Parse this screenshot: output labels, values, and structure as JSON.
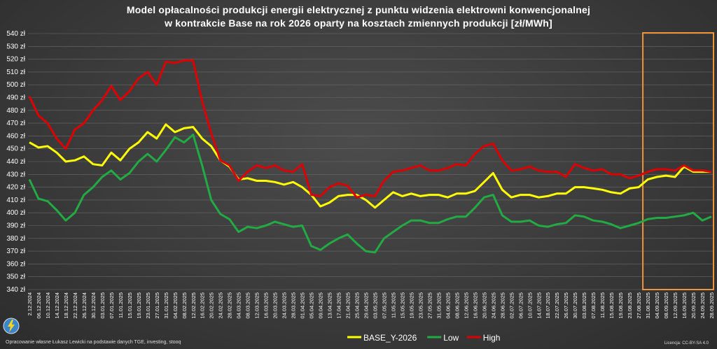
{
  "chart_data": {
    "type": "line",
    "title": "Model opłacalności produkcji energii elektrycznej z punktu widzenia elektrowni konwencjonalnej",
    "subtitle": "w kontrakcie Base na rok 2026 oparty na kosztach zmiennych produkcji [zł/MWh]",
    "ylim": [
      340,
      540
    ],
    "yticks": [
      "340 zł",
      "350 zł",
      "360 zł",
      "370 zł",
      "380 zł",
      "390 zł",
      "400 zł",
      "410 zł",
      "420 zł",
      "430 zł",
      "440 zł",
      "450 zł",
      "460 zł",
      "470 zł",
      "480 zł",
      "490 zł",
      "500 zł",
      "510 zł",
      "520 zł",
      "530 zł",
      "540 zł"
    ],
    "x_dates": [
      "2.12.2024",
      "06.12.2024",
      "10.12.2024",
      "14.12.2024",
      "18.12.2024",
      "22.12.2024",
      "26.12.2024",
      "30.12.2024",
      "03.01.2025",
      "07.01.2025",
      "11.01.2025",
      "15.01.2025",
      "19.01.2025",
      "23.01.2025",
      "27.01.2025",
      "31.01.2025",
      "04.02.2025",
      "08.02.2025",
      "12.02.2025",
      "16.02.2025",
      "20.02.2025",
      "24.02.2025",
      "28.02.2025",
      "04.03.2025",
      "08.03.2025",
      "12.03.2025",
      "16.03.2025",
      "20.03.2025",
      "24.03.2025",
      "28.03.2025",
      "01.04.2025",
      "05.04.2025",
      "09.04.2025",
      "13.04.2025",
      "17.04.2025",
      "21.04.2025",
      "25.04.2025",
      "29.04.2025",
      "03.05.2025",
      "07.05.2025",
      "11.05.2025",
      "15.05.2025",
      "19.05.2025",
      "23.05.2025",
      "27.05.2025",
      "31.05.2025",
      "04.06.2025",
      "08.06.2025",
      "12.06.2025",
      "16.06.2025",
      "20.06.2025",
      "24.06.2025",
      "28.06.2025",
      "02.07.2025",
      "06.07.2025",
      "10.07.2025",
      "14.07.2025",
      "18.07.2025",
      "22.07.2025",
      "26.07.2025",
      "30.07.2025",
      "03.08.2025",
      "07.08.2025",
      "11.08.2025",
      "15.08.2025",
      "19.08.2025",
      "23.08.2025",
      "27.08.2025",
      "31.08.2025",
      "04.09.2025",
      "08.09.2025",
      "12.09.2025",
      "16.09.2025",
      "20.09.2025",
      "24.09.2025",
      "28.09.2025"
    ],
    "series": [
      {
        "name": "BASE_Y-2026",
        "color": "#ffff00",
        "values": [
          455,
          451,
          452,
          447,
          440,
          441,
          444,
          438,
          437,
          447,
          441,
          450,
          455,
          463,
          458,
          469,
          463,
          466,
          467,
          458,
          452,
          441,
          436,
          426,
          427,
          425,
          425,
          424,
          422,
          424,
          420,
          414,
          405,
          408,
          413,
          414,
          414,
          410,
          404,
          410,
          416,
          413,
          415,
          413,
          414,
          414,
          412,
          415,
          415,
          417,
          424,
          431,
          418,
          412,
          414,
          414,
          412,
          413,
          415,
          415,
          420,
          420,
          419,
          418,
          416,
          415,
          419,
          420,
          426,
          428,
          429,
          428,
          436,
          432,
          432,
          432
        ]
      },
      {
        "name": "Low",
        "color": "#22aa44",
        "values": [
          426,
          411,
          409,
          402,
          394,
          400,
          414,
          420,
          428,
          433,
          426,
          431,
          440,
          446,
          440,
          449,
          459,
          455,
          461,
          437,
          410,
          399,
          395,
          385,
          389,
          388,
          390,
          393,
          391,
          389,
          390,
          374,
          371,
          376,
          380,
          383,
          376,
          370,
          369,
          380,
          385,
          390,
          394,
          394,
          392,
          392,
          395,
          397,
          397,
          404,
          412,
          414,
          398,
          393,
          393,
          394,
          390,
          389,
          391,
          392,
          398,
          397,
          394,
          393,
          391,
          388,
          390,
          392,
          395,
          396,
          396,
          397,
          398,
          400,
          394,
          397
        ]
      },
      {
        "name": "High",
        "color": "#dd0000",
        "values": [
          491,
          476,
          470,
          458,
          450,
          465,
          470,
          480,
          488,
          499,
          488,
          495,
          505,
          510,
          500,
          518,
          517,
          519,
          519,
          487,
          462,
          441,
          437,
          425,
          432,
          437,
          435,
          437,
          433,
          432,
          438,
          414,
          413,
          420,
          423,
          421,
          412,
          414,
          413,
          425,
          432,
          433,
          435,
          437,
          433,
          433,
          435,
          438,
          437,
          446,
          452,
          454,
          441,
          433,
          434,
          436,
          433,
          432,
          432,
          428,
          438,
          435,
          433,
          434,
          430,
          430,
          427,
          429,
          432,
          434,
          434,
          433,
          437,
          433,
          433,
          432
        ]
      }
    ],
    "highlight": {
      "from_index": 68,
      "to_index": 75,
      "color": "#f0943a"
    },
    "legend_position": "bottom-center",
    "grid": true
  },
  "footer": {
    "source": "Opracowanie własne Łukasz Lewicki na podstawie danych TGE, investing, stooq",
    "license": "Licencja: CC-BY-SA 4.0"
  }
}
